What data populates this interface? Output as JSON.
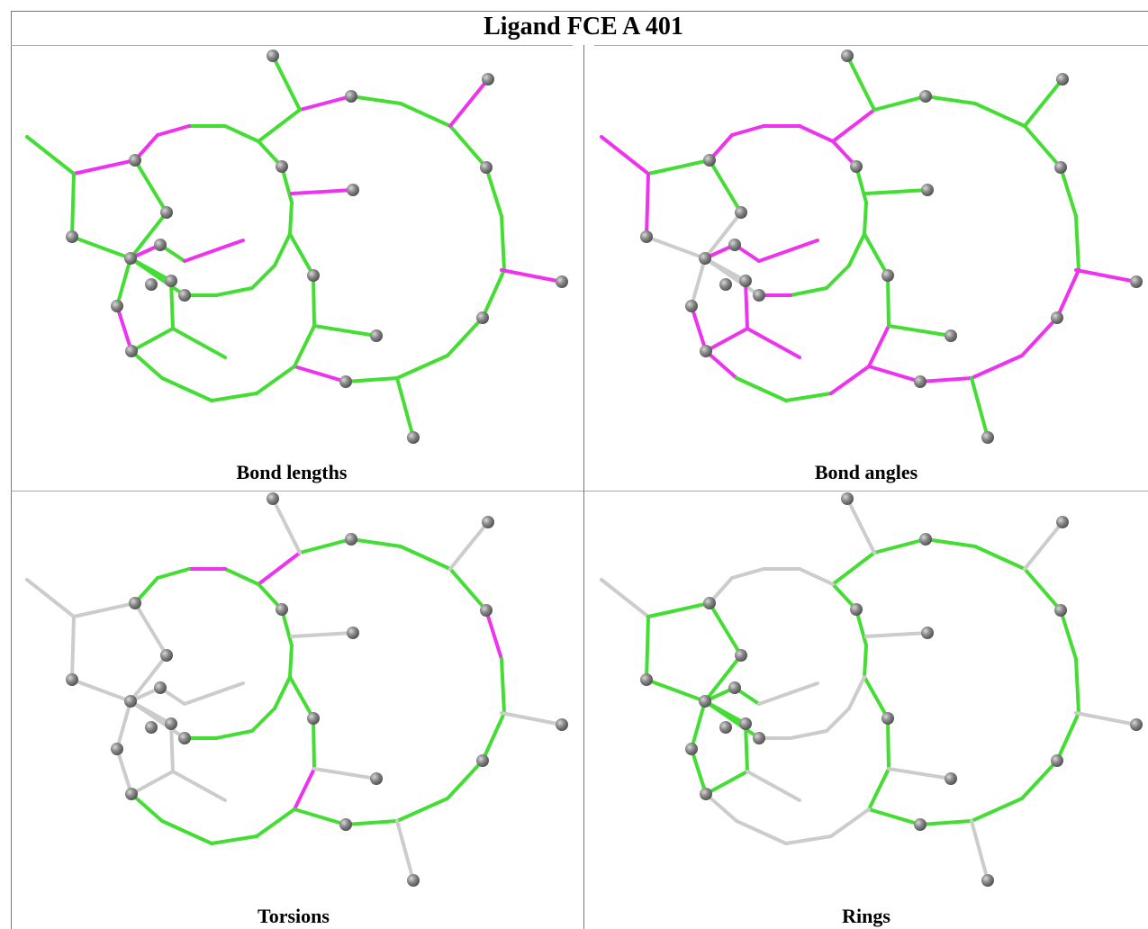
{
  "title": "Ligand FCE A 401",
  "panels": [
    {
      "caption": "Bond lengths"
    },
    {
      "caption": "Bond angles"
    },
    {
      "caption": "Torsions"
    },
    {
      "caption": "Rings"
    }
  ]
}
